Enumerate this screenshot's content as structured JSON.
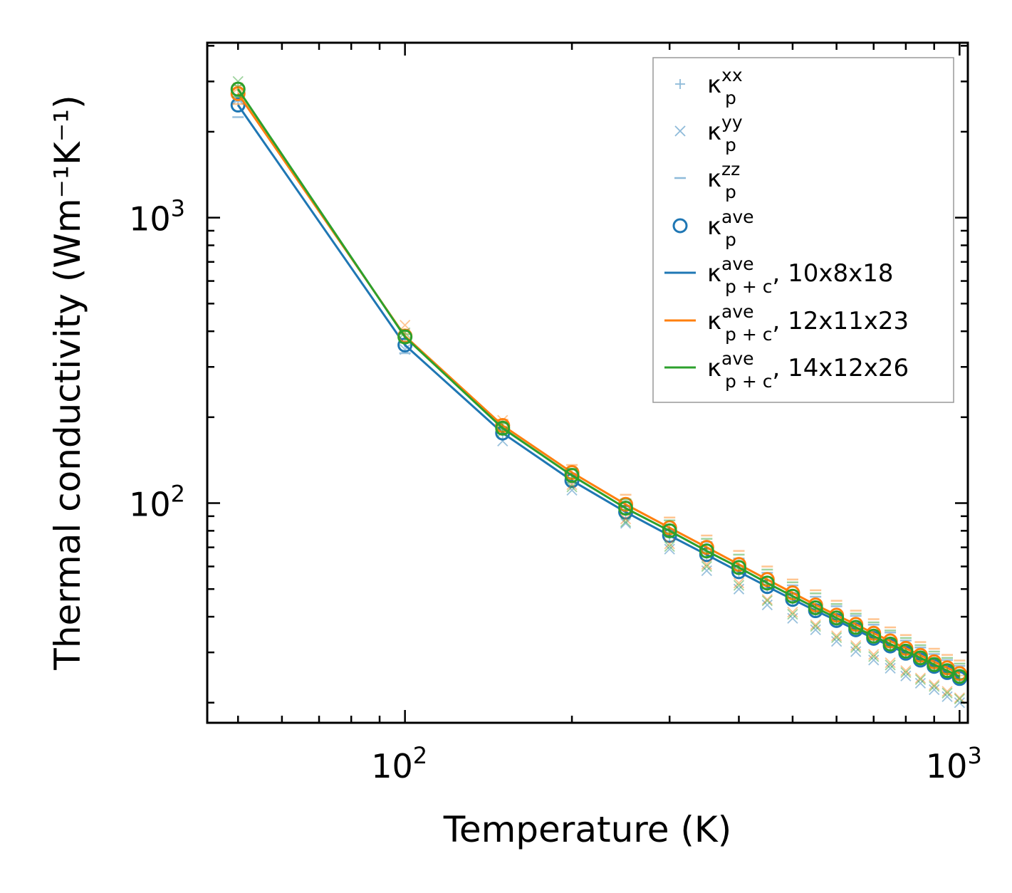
{
  "chart_data": {
    "type": "scatter",
    "xlabel": "Temperature (K)",
    "ylabel": "Thermal conductivity (Wm⁻¹K⁻¹)",
    "xscale": "log",
    "yscale": "log",
    "xlim": [
      44,
      1035
    ],
    "ylim": [
      17,
      4100
    ],
    "x_ticks": [
      {
        "value": 100,
        "base": "10",
        "exp": "2"
      },
      {
        "value": 1000,
        "base": "10",
        "exp": "3"
      }
    ],
    "y_ticks": [
      {
        "value": 100,
        "base": "10",
        "exp": "2"
      },
      {
        "value": 1000,
        "base": "10",
        "exp": "3"
      }
    ],
    "x": [
      50,
      100,
      150,
      200,
      250,
      300,
      350,
      400,
      450,
      500,
      550,
      600,
      650,
      700,
      750,
      800,
      850,
      900,
      950,
      1000
    ],
    "groups": [
      {
        "name": "10x8x18",
        "color": "#1f77b4",
        "ave": [
          2480,
          358,
          176,
          120,
          93,
          77,
          66,
          57.5,
          51,
          46,
          42,
          38.8,
          36,
          33.6,
          31.6,
          29.8,
          28.2,
          26.8,
          25.5,
          24.3
        ],
        "xx": [
          2550,
          365,
          175,
          118,
          92,
          76,
          65,
          57,
          50.5,
          45.5,
          41.5,
          38.3,
          35.6,
          33.2,
          31.2,
          29.4,
          27.8,
          26.4,
          25.1,
          23.9
        ],
        "yy": [
          2600,
          345,
          165,
          111,
          85,
          69,
          58,
          50,
          44,
          39.5,
          36,
          32.8,
          30.2,
          28.2,
          26.4,
          24.8,
          23.4,
          22.2,
          21,
          20
        ],
        "zz": [
          2250,
          335,
          182,
          127,
          101,
          84,
          73,
          64,
          57,
          51.5,
          47,
          43.5,
          40.3,
          37.5,
          35.2,
          33,
          31.2,
          29.6,
          28.2,
          26.9
        ],
        "p_plus_c": [
          2480,
          358,
          176,
          120,
          93,
          77,
          66,
          57.5,
          51,
          46,
          42,
          38.8,
          36,
          33.6,
          31.6,
          29.8,
          28.2,
          26.8,
          25.5,
          24.3
        ]
      },
      {
        "name": "12x11x23",
        "color": "#ff7f0e",
        "ave": [
          2720,
          385,
          187,
          128,
          99,
          82,
          70,
          61,
          54,
          48.5,
          44,
          40.5,
          37.6,
          35,
          32.9,
          31,
          29.3,
          27.8,
          26.5,
          25.3
        ],
        "xx": [
          2800,
          392,
          186,
          126,
          98,
          81,
          69,
          60.5,
          53.5,
          48,
          43.5,
          40,
          37.2,
          34.6,
          32.5,
          30.6,
          28.9,
          27.4,
          26.1,
          24.9
        ],
        "yy": [
          2850,
          420,
          195,
          116,
          88,
          72,
          61,
          52.5,
          46,
          41.5,
          37.5,
          34.3,
          31.7,
          29.5,
          27.6,
          25.9,
          24.4,
          23.1,
          21.9,
          20.8
        ],
        "zz": [
          2500,
          370,
          196,
          136,
          107,
          89,
          77,
          68,
          60,
          54,
          49.5,
          45.5,
          42,
          39.2,
          36.7,
          34.5,
          32.6,
          30.9,
          29.4,
          28.1
        ],
        "p_plus_c": [
          2720,
          385,
          187,
          128,
          99,
          82,
          70,
          61,
          54,
          48.5,
          44,
          40.5,
          37.6,
          35,
          32.9,
          31,
          29.3,
          27.8,
          26.5,
          25.3
        ]
      },
      {
        "name": "14x12x26",
        "color": "#2ca02c",
        "ave": [
          2820,
          382,
          183,
          125,
          96,
          80,
          68,
          59.5,
          52.5,
          47.2,
          43,
          39.6,
          36.7,
          34.2,
          32.1,
          30.3,
          28.7,
          27.2,
          25.9,
          24.7
        ],
        "xx": [
          2900,
          390,
          182,
          123,
          95,
          79,
          67.5,
          59,
          52,
          46.8,
          42.6,
          39.2,
          36.3,
          33.8,
          31.7,
          29.9,
          28.3,
          26.8,
          25.5,
          24.3
        ],
        "yy": [
          3000,
          395,
          178,
          114,
          86,
          70.5,
          60,
          51.5,
          45.5,
          40.8,
          37,
          33.8,
          31.2,
          29,
          27.1,
          25.5,
          24.1,
          22.8,
          21.6,
          20.6
        ],
        "zz": [
          2650,
          365,
          190,
          132,
          103,
          87,
          75,
          66,
          58.5,
          52.8,
          48.3,
          44.3,
          41,
          38.2,
          35.8,
          33.7,
          31.8,
          30.2,
          28.7,
          27.4
        ],
        "p_plus_c": [
          2820,
          382,
          183,
          125,
          96,
          80,
          68,
          59.5,
          52.5,
          47.2,
          43,
          39.6,
          36.7,
          34.2,
          32.1,
          30.3,
          28.7,
          27.2,
          25.9,
          24.7
        ]
      }
    ],
    "legend": {
      "position": "top-right",
      "entries": [
        {
          "marker": "+",
          "symbol": "κ",
          "sub": "p",
          "sup": "xx",
          "suffix": "",
          "color": "#1f77b4"
        },
        {
          "marker": "x",
          "symbol": "κ",
          "sub": "p",
          "sup": "yy",
          "suffix": "",
          "color": "#1f77b4"
        },
        {
          "marker": "_",
          "symbol": "κ",
          "sub": "p",
          "sup": "zz",
          "suffix": "",
          "color": "#1f77b4"
        },
        {
          "marker": "o",
          "symbol": "κ",
          "sub": "p",
          "sup": "ave",
          "suffix": "",
          "color": "#1f77b4"
        },
        {
          "marker": "line",
          "symbol": "κ",
          "sub": "p + c",
          "sup": "ave",
          "suffix": ", 10x8x18",
          "color": "#1f77b4"
        },
        {
          "marker": "line",
          "symbol": "κ",
          "sub": "p + c",
          "sup": "ave",
          "suffix": ", 12x11x23",
          "color": "#ff7f0e"
        },
        {
          "marker": "line",
          "symbol": "κ",
          "sub": "p + c",
          "sup": "ave",
          "suffix": ", 14x12x26",
          "color": "#2ca02c"
        }
      ]
    }
  }
}
